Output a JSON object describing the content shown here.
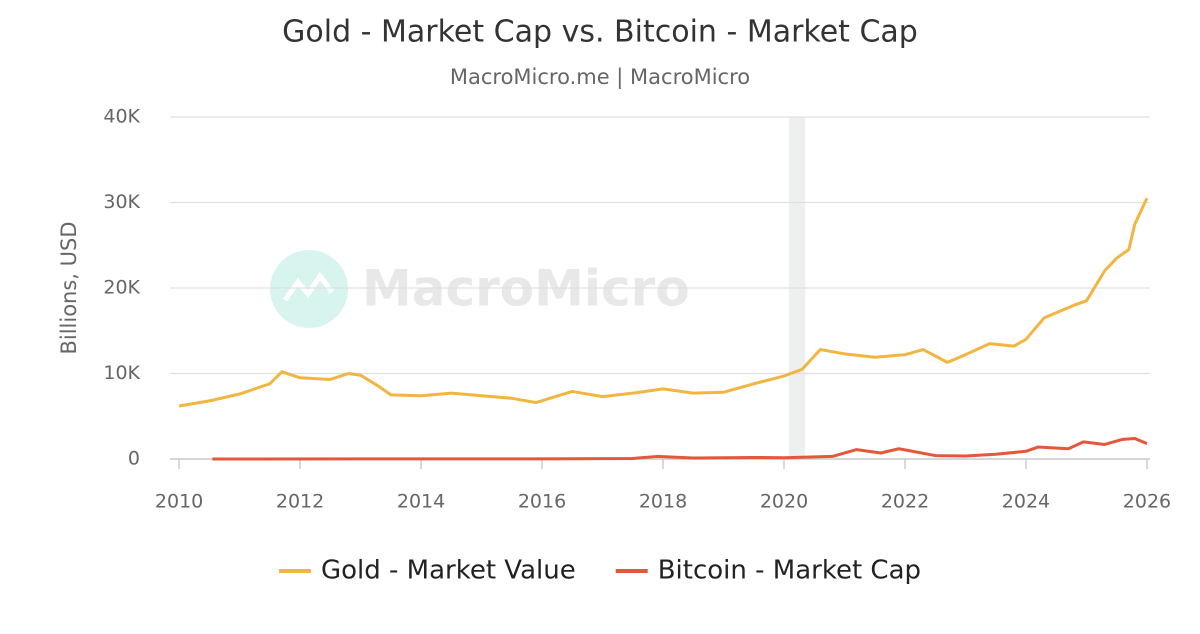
{
  "chart_data": {
    "type": "line",
    "title": "Gold - Market Cap vs. Bitcoin - Market Cap",
    "subtitle": "MacroMicro.me | MacroMicro",
    "watermark": "MacroMicro",
    "y_label": "Billions, USD",
    "xlim": [
      2009.85,
      2026.05
    ],
    "xticks": [
      2010,
      2012,
      2014,
      2016,
      2018,
      2020,
      2022,
      2024,
      2026
    ],
    "ylim": [
      0,
      40000
    ],
    "yticks": [
      0,
      {
        "value": 10000,
        "label": "10K"
      },
      {
        "value": 20000,
        "label": "20K"
      },
      {
        "value": 30000,
        "label": "30K"
      },
      {
        "value": 40000,
        "label": "40K"
      }
    ],
    "grid": true,
    "legend": "bottom",
    "highlight_xrange": [
      2020.08,
      2020.35
    ],
    "series": [
      {
        "name": "Gold - Market Value",
        "color": "#f2b53f",
        "x": [
          2010,
          2010.5,
          2011,
          2011.5,
          2011.7,
          2012,
          2012.5,
          2012.8,
          2013,
          2013.3,
          2013.5,
          2014,
          2014.5,
          2015,
          2015.5,
          2015.9,
          2016.5,
          2017,
          2017.5,
          2018,
          2018.5,
          2019,
          2019.5,
          2020,
          2020.3,
          2020.6,
          2021,
          2021.5,
          2022,
          2022.3,
          2022.7,
          2023,
          2023.4,
          2023.8,
          2024,
          2024.3,
          2024.8,
          2025,
          2025.3,
          2025.5,
          2025.7,
          2025.8,
          2026
        ],
        "values": [
          6200,
          6800,
          7600,
          8800,
          10200,
          9500,
          9300,
          10000,
          9800,
          8500,
          7500,
          7400,
          7700,
          7400,
          7100,
          6600,
          7900,
          7300,
          7700,
          8200,
          7700,
          7800,
          8800,
          9700,
          10500,
          12800,
          12300,
          11900,
          12200,
          12800,
          11300,
          12200,
          13500,
          13200,
          14000,
          16500,
          18000,
          18500,
          22000,
          23500,
          24500,
          27500,
          30500
        ]
      },
      {
        "name": "Bitcoin - Market Cap",
        "color": "#e4573b",
        "x": [
          2010.55,
          2013,
          2016,
          2017.5,
          2017.9,
          2018.5,
          2019.5,
          2020,
          2020.8,
          2021.2,
          2021.6,
          2021.9,
          2022.5,
          2023,
          2023.5,
          2024,
          2024.2,
          2024.7,
          2024.95,
          2025.3,
          2025.6,
          2025.8,
          2026
        ],
        "values": [
          0,
          10,
          10,
          60,
          300,
          120,
          180,
          150,
          300,
          1100,
          700,
          1200,
          400,
          350,
          550,
          900,
          1400,
          1200,
          2000,
          1700,
          2300,
          2400,
          1800
        ]
      }
    ]
  }
}
